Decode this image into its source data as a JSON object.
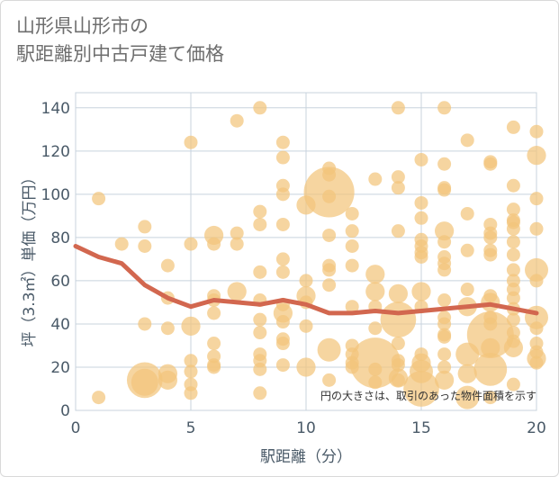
{
  "title_line1": "山形県山形市の",
  "title_line2": "駅距離別中古戸建て価格",
  "note": "円の大きさは、取引のあった物件面積を示す",
  "colors": {
    "bubble": "#f2c57c",
    "line": "#d2674f",
    "grid": "#c8d3dd",
    "plotbg": "#ffffff"
  },
  "chart_data": {
    "type": "scatter",
    "xlabel": "駅距離（分）",
    "ylabel": "坪（3.3㎡）単価（万円）",
    "xlim": [
      0,
      20
    ],
    "ylim": [
      0,
      147
    ],
    "xticks": [
      "0",
      "5",
      "10",
      "15",
      "20"
    ],
    "xtick_values": [
      0,
      5,
      10,
      15,
      20
    ],
    "yticks": [
      "0",
      "20",
      "40",
      "60",
      "80",
      "100",
      "120",
      "140"
    ],
    "ytick_values": [
      0,
      20,
      40,
      60,
      80,
      100,
      120,
      140
    ],
    "grid": true,
    "trend": {
      "x": [
        0,
        1,
        2,
        3,
        4,
        5,
        6,
        7,
        8,
        9,
        10,
        11,
        12,
        13,
        14,
        15,
        16,
        17,
        18,
        19,
        20
      ],
      "y": [
        76,
        71,
        68,
        58,
        52,
        48,
        51,
        50,
        49,
        51,
        49,
        45,
        45,
        46,
        45,
        46,
        47,
        48,
        49,
        47,
        45
      ]
    },
    "points": [
      {
        "x": 1,
        "y": 98,
        "s": 1
      },
      {
        "x": 1,
        "y": 6,
        "s": 1
      },
      {
        "x": 2,
        "y": 77,
        "s": 1
      },
      {
        "x": 3,
        "y": 85,
        "s": 1
      },
      {
        "x": 3,
        "y": 76,
        "s": 1
      },
      {
        "x": 3,
        "y": 40,
        "s": 1
      },
      {
        "x": 3,
        "y": 14,
        "s": 7
      },
      {
        "x": 3,
        "y": 13,
        "s": 4
      },
      {
        "x": 4,
        "y": 67,
        "s": 1
      },
      {
        "x": 4,
        "y": 52,
        "s": 1
      },
      {
        "x": 4,
        "y": 38,
        "s": 1
      },
      {
        "x": 4,
        "y": 17,
        "s": 2
      },
      {
        "x": 4,
        "y": 14,
        "s": 2
      },
      {
        "x": 5,
        "y": 124,
        "s": 1
      },
      {
        "x": 5,
        "y": 77,
        "s": 1
      },
      {
        "x": 5,
        "y": 39,
        "s": 2
      },
      {
        "x": 5,
        "y": 23,
        "s": 1
      },
      {
        "x": 5,
        "y": 18,
        "s": 1
      },
      {
        "x": 5,
        "y": 12,
        "s": 1
      },
      {
        "x": 5,
        "y": 8,
        "s": 1
      },
      {
        "x": 6,
        "y": 81,
        "s": 2
      },
      {
        "x": 6,
        "y": 77,
        "s": 1
      },
      {
        "x": 6,
        "y": 53,
        "s": 1
      },
      {
        "x": 6,
        "y": 51,
        "s": 1
      },
      {
        "x": 6,
        "y": 45,
        "s": 1
      },
      {
        "x": 6,
        "y": 31,
        "s": 1
      },
      {
        "x": 6,
        "y": 25,
        "s": 1
      },
      {
        "x": 6,
        "y": 21,
        "s": 1
      },
      {
        "x": 6,
        "y": 20,
        "s": 1
      },
      {
        "x": 7,
        "y": 134,
        "s": 1
      },
      {
        "x": 7,
        "y": 82,
        "s": 1
      },
      {
        "x": 7,
        "y": 77,
        "s": 1
      },
      {
        "x": 7,
        "y": 55,
        "s": 2
      },
      {
        "x": 8,
        "y": 140,
        "s": 1
      },
      {
        "x": 8,
        "y": 92,
        "s": 1
      },
      {
        "x": 8,
        "y": 86,
        "s": 1
      },
      {
        "x": 8,
        "y": 64,
        "s": 1
      },
      {
        "x": 8,
        "y": 51,
        "s": 1
      },
      {
        "x": 8,
        "y": 42,
        "s": 1
      },
      {
        "x": 8,
        "y": 36,
        "s": 1
      },
      {
        "x": 8,
        "y": 26,
        "s": 1
      },
      {
        "x": 8,
        "y": 23,
        "s": 1
      },
      {
        "x": 8,
        "y": 19,
        "s": 1
      },
      {
        "x": 8,
        "y": 8,
        "s": 1
      },
      {
        "x": 9,
        "y": 124,
        "s": 1
      },
      {
        "x": 9,
        "y": 117,
        "s": 1
      },
      {
        "x": 9,
        "y": 104,
        "s": 1
      },
      {
        "x": 9,
        "y": 100,
        "s": 1
      },
      {
        "x": 9,
        "y": 86,
        "s": 1
      },
      {
        "x": 9,
        "y": 70,
        "s": 1
      },
      {
        "x": 9,
        "y": 64,
        "s": 1
      },
      {
        "x": 9,
        "y": 49,
        "s": 1
      },
      {
        "x": 9,
        "y": 45,
        "s": 2
      },
      {
        "x": 9,
        "y": 41,
        "s": 1
      },
      {
        "x": 9,
        "y": 33,
        "s": 1
      },
      {
        "x": 9,
        "y": 31,
        "s": 1
      },
      {
        "x": 9,
        "y": 21,
        "s": 1
      },
      {
        "x": 10,
        "y": 95,
        "s": 2
      },
      {
        "x": 10,
        "y": 60,
        "s": 1
      },
      {
        "x": 10,
        "y": 53,
        "s": 2
      },
      {
        "x": 10,
        "y": 50,
        "s": 1
      },
      {
        "x": 10,
        "y": 39,
        "s": 1
      },
      {
        "x": 10,
        "y": 20,
        "s": 2
      },
      {
        "x": 11,
        "y": 112,
        "s": 1
      },
      {
        "x": 11,
        "y": 109,
        "s": 1
      },
      {
        "x": 11,
        "y": 101,
        "s": 14
      },
      {
        "x": 11,
        "y": 99,
        "s": 1
      },
      {
        "x": 11,
        "y": 81,
        "s": 1
      },
      {
        "x": 11,
        "y": 67,
        "s": 1
      },
      {
        "x": 11,
        "y": 65,
        "s": 1
      },
      {
        "x": 11,
        "y": 58,
        "s": 1
      },
      {
        "x": 11,
        "y": 28,
        "s": 3
      },
      {
        "x": 11,
        "y": 14,
        "s": 1
      },
      {
        "x": 12,
        "y": 91,
        "s": 1
      },
      {
        "x": 12,
        "y": 83,
        "s": 1
      },
      {
        "x": 12,
        "y": 76,
        "s": 1
      },
      {
        "x": 12,
        "y": 67,
        "s": 1
      },
      {
        "x": 12,
        "y": 48,
        "s": 1
      },
      {
        "x": 12,
        "y": 30,
        "s": 1
      },
      {
        "x": 12,
        "y": 26,
        "s": 1
      },
      {
        "x": 12,
        "y": 22,
        "s": 1
      },
      {
        "x": 12,
        "y": 20,
        "s": 1
      },
      {
        "x": 13,
        "y": 107,
        "s": 1
      },
      {
        "x": 13,
        "y": 63,
        "s": 2
      },
      {
        "x": 13,
        "y": 55,
        "s": 2
      },
      {
        "x": 13,
        "y": 48,
        "s": 1
      },
      {
        "x": 13,
        "y": 38,
        "s": 1
      },
      {
        "x": 13,
        "y": 22,
        "s": 14
      },
      {
        "x": 13,
        "y": 19,
        "s": 1
      },
      {
        "x": 13,
        "y": 13,
        "s": 1
      },
      {
        "x": 14,
        "y": 140,
        "s": 1
      },
      {
        "x": 14,
        "y": 108,
        "s": 1
      },
      {
        "x": 14,
        "y": 103,
        "s": 1
      },
      {
        "x": 14,
        "y": 83,
        "s": 1
      },
      {
        "x": 14,
        "y": 54,
        "s": 2
      },
      {
        "x": 14,
        "y": 42,
        "s": 7
      },
      {
        "x": 14,
        "y": 31,
        "s": 1
      },
      {
        "x": 14,
        "y": 23,
        "s": 1
      },
      {
        "x": 14,
        "y": 21,
        "s": 1
      },
      {
        "x": 14,
        "y": 15,
        "s": 2
      },
      {
        "x": 14,
        "y": 14,
        "s": 1
      },
      {
        "x": 15,
        "y": 116,
        "s": 1
      },
      {
        "x": 15,
        "y": 96,
        "s": 1
      },
      {
        "x": 15,
        "y": 89,
        "s": 1
      },
      {
        "x": 15,
        "y": 79,
        "s": 1
      },
      {
        "x": 15,
        "y": 76,
        "s": 1
      },
      {
        "x": 15,
        "y": 73,
        "s": 1
      },
      {
        "x": 15,
        "y": 71,
        "s": 1
      },
      {
        "x": 15,
        "y": 55,
        "s": 2
      },
      {
        "x": 15,
        "y": 48,
        "s": 1
      },
      {
        "x": 15,
        "y": 26,
        "s": 1
      },
      {
        "x": 15,
        "y": 22,
        "s": 2
      },
      {
        "x": 15,
        "y": 18,
        "s": 3
      },
      {
        "x": 15,
        "y": 10,
        "s": 7
      },
      {
        "x": 16,
        "y": 140,
        "s": 1
      },
      {
        "x": 16,
        "y": 114,
        "s": 1
      },
      {
        "x": 16,
        "y": 103,
        "s": 1
      },
      {
        "x": 16,
        "y": 102,
        "s": 1
      },
      {
        "x": 16,
        "y": 83,
        "s": 2
      },
      {
        "x": 16,
        "y": 78,
        "s": 1
      },
      {
        "x": 16,
        "y": 71,
        "s": 1
      },
      {
        "x": 16,
        "y": 68,
        "s": 1
      },
      {
        "x": 16,
        "y": 65,
        "s": 1
      },
      {
        "x": 16,
        "y": 51,
        "s": 1
      },
      {
        "x": 16,
        "y": 43,
        "s": 1
      },
      {
        "x": 16,
        "y": 40,
        "s": 1
      },
      {
        "x": 16,
        "y": 35,
        "s": 1
      },
      {
        "x": 16,
        "y": 34,
        "s": 1
      },
      {
        "x": 16,
        "y": 26,
        "s": 1
      },
      {
        "x": 16,
        "y": 20,
        "s": 1
      },
      {
        "x": 16,
        "y": 14,
        "s": 2
      },
      {
        "x": 17,
        "y": 125,
        "s": 1
      },
      {
        "x": 17,
        "y": 91,
        "s": 1
      },
      {
        "x": 17,
        "y": 74,
        "s": 1
      },
      {
        "x": 17,
        "y": 56,
        "s": 1
      },
      {
        "x": 17,
        "y": 48,
        "s": 2
      },
      {
        "x": 17,
        "y": 26,
        "s": 3
      },
      {
        "x": 17,
        "y": 17,
        "s": 2
      },
      {
        "x": 17,
        "y": 6,
        "s": 3
      },
      {
        "x": 18,
        "y": 115,
        "s": 1
      },
      {
        "x": 18,
        "y": 114,
        "s": 1
      },
      {
        "x": 18,
        "y": 86,
        "s": 1
      },
      {
        "x": 18,
        "y": 82,
        "s": 1
      },
      {
        "x": 18,
        "y": 80,
        "s": 1
      },
      {
        "x": 18,
        "y": 74,
        "s": 1
      },
      {
        "x": 18,
        "y": 72,
        "s": 1
      },
      {
        "x": 18,
        "y": 53,
        "s": 1
      },
      {
        "x": 18,
        "y": 50,
        "s": 2
      },
      {
        "x": 18,
        "y": 43,
        "s": 1
      },
      {
        "x": 18,
        "y": 40,
        "s": 1
      },
      {
        "x": 18,
        "y": 35,
        "s": 12
      },
      {
        "x": 18,
        "y": 29,
        "s": 2
      },
      {
        "x": 18,
        "y": 19,
        "s": 6
      },
      {
        "x": 18,
        "y": 6,
        "s": 1
      },
      {
        "x": 19,
        "y": 131,
        "s": 1
      },
      {
        "x": 19,
        "y": 104,
        "s": 1
      },
      {
        "x": 19,
        "y": 93,
        "s": 1
      },
      {
        "x": 19,
        "y": 88,
        "s": 1
      },
      {
        "x": 19,
        "y": 87,
        "s": 1
      },
      {
        "x": 19,
        "y": 84,
        "s": 1
      },
      {
        "x": 19,
        "y": 78,
        "s": 1
      },
      {
        "x": 19,
        "y": 72,
        "s": 1
      },
      {
        "x": 19,
        "y": 65,
        "s": 1
      },
      {
        "x": 19,
        "y": 60,
        "s": 1
      },
      {
        "x": 19,
        "y": 56,
        "s": 1
      },
      {
        "x": 19,
        "y": 52,
        "s": 1
      },
      {
        "x": 19,
        "y": 47,
        "s": 1
      },
      {
        "x": 19,
        "y": 42,
        "s": 1
      },
      {
        "x": 19,
        "y": 36,
        "s": 1
      },
      {
        "x": 19,
        "y": 32,
        "s": 1
      },
      {
        "x": 19,
        "y": 29,
        "s": 2
      },
      {
        "x": 19,
        "y": 12,
        "s": 1
      },
      {
        "x": 20,
        "y": 129,
        "s": 1
      },
      {
        "x": 20,
        "y": 118,
        "s": 2
      },
      {
        "x": 20,
        "y": 98,
        "s": 1
      },
      {
        "x": 20,
        "y": 84,
        "s": 1
      },
      {
        "x": 20,
        "y": 65,
        "s": 3
      },
      {
        "x": 20,
        "y": 60,
        "s": 1
      },
      {
        "x": 20,
        "y": 43,
        "s": 3
      },
      {
        "x": 20,
        "y": 38,
        "s": 1
      },
      {
        "x": 20,
        "y": 31,
        "s": 1
      },
      {
        "x": 20,
        "y": 27,
        "s": 1
      },
      {
        "x": 20,
        "y": 24,
        "s": 2
      },
      {
        "x": 20,
        "y": 22,
        "s": 1
      }
    ]
  }
}
